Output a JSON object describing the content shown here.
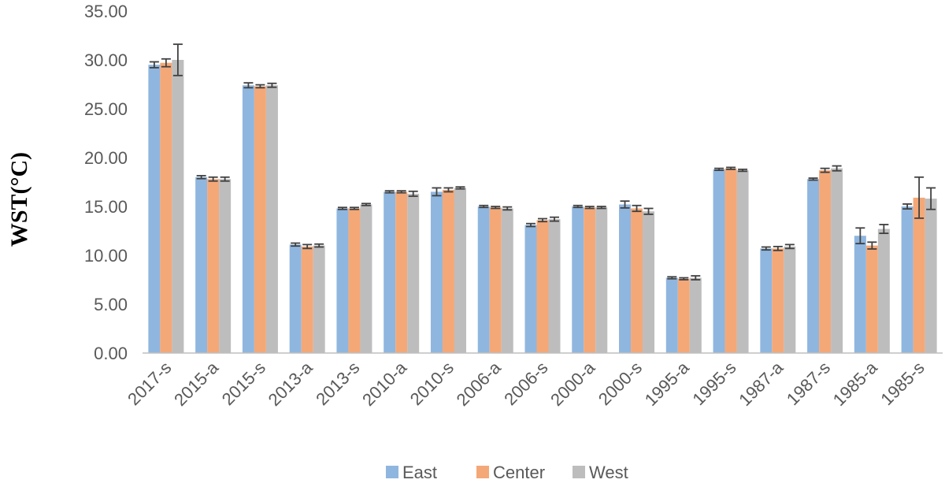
{
  "chart_data": {
    "type": "bar",
    "title": "",
    "xlabel": "",
    "ylabel": "WST(°C)",
    "ylim": [
      0,
      35
    ],
    "y_ticks": [
      "0.00",
      "5.00",
      "10.00",
      "15.00",
      "20.00",
      "25.00",
      "30.00",
      "35.00"
    ],
    "grid": false,
    "legend_position": "bottom",
    "categories": [
      "2017-s",
      "2015-a",
      "2015-s",
      "2013-a",
      "2013-s",
      "2010-a",
      "2010-s",
      "2006-a",
      "2006-s",
      "2000-a",
      "2000-s",
      "1995-a",
      "1995-s",
      "1987-a",
      "1987-s",
      "1985-a",
      "1985-s"
    ],
    "series": [
      {
        "name": "East",
        "color": "#8fb6df",
        "values": [
          29.5,
          18.0,
          27.4,
          11.1,
          14.8,
          16.5,
          16.5,
          15.0,
          13.1,
          15.0,
          15.2,
          7.7,
          18.8,
          10.7,
          17.8,
          12.0,
          15.0
        ],
        "errors": [
          0.3,
          0.15,
          0.25,
          0.15,
          0.1,
          0.1,
          0.4,
          0.1,
          0.15,
          0.1,
          0.35,
          0.1,
          0.1,
          0.15,
          0.1,
          0.8,
          0.25
        ]
      },
      {
        "name": "Center",
        "color": "#f4a878",
        "values": [
          29.7,
          17.8,
          27.3,
          10.9,
          14.8,
          16.5,
          16.7,
          14.9,
          13.6,
          14.9,
          14.8,
          7.6,
          18.9,
          10.7,
          18.7,
          11.0,
          15.9
        ],
        "errors": [
          0.4,
          0.2,
          0.15,
          0.2,
          0.1,
          0.1,
          0.2,
          0.1,
          0.15,
          0.1,
          0.3,
          0.1,
          0.1,
          0.2,
          0.2,
          0.35,
          2.1
        ]
      },
      {
        "name": "West",
        "color": "#bdbdbd",
        "values": [
          30.0,
          17.8,
          27.4,
          11.0,
          15.2,
          16.3,
          16.9,
          14.8,
          13.7,
          14.9,
          14.5,
          7.7,
          18.7,
          10.9,
          18.9,
          12.7,
          15.8
        ],
        "errors": [
          1.6,
          0.2,
          0.2,
          0.15,
          0.1,
          0.25,
          0.1,
          0.15,
          0.2,
          0.1,
          0.3,
          0.2,
          0.1,
          0.2,
          0.25,
          0.45,
          1.1
        ]
      }
    ]
  }
}
